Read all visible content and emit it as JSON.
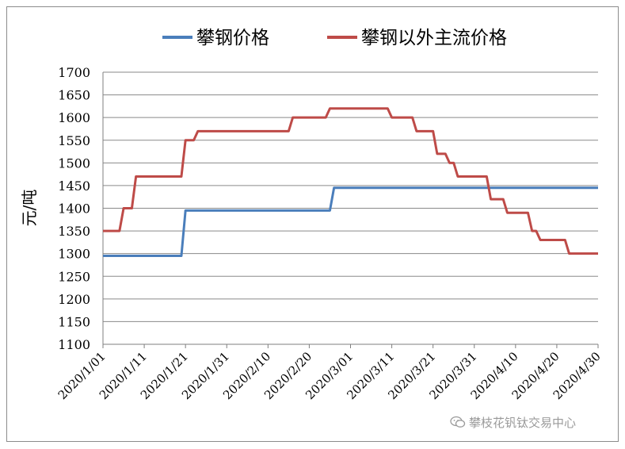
{
  "chart_data": {
    "type": "line",
    "title": "",
    "xlabel": "",
    "ylabel": "元/吨",
    "ylim": [
      1100,
      1700
    ],
    "yticks": [
      1100,
      1150,
      1200,
      1250,
      1300,
      1350,
      1400,
      1450,
      1500,
      1550,
      1600,
      1650,
      1700
    ],
    "x_range": [
      "2020/1/01",
      "2020/4/30"
    ],
    "x_tick_labels": [
      "2020/1/01",
      "2020/1/11",
      "2020/1/21",
      "2020/1/31",
      "2020/2/10",
      "2020/2/20",
      "2020/3/01",
      "2020/3/11",
      "2020/3/21",
      "2020/3/31",
      "2020/4/10",
      "2020/4/20",
      "2020/4/30"
    ],
    "grid": true,
    "legend_position": "top",
    "series": [
      {
        "name": "攀钢价格",
        "color": "#4a7ebb",
        "points": [
          [
            "2020/1/01",
            1295
          ],
          [
            "2020/1/20",
            1295
          ],
          [
            "2020/1/21",
            1395
          ],
          [
            "2020/2/25",
            1395
          ],
          [
            "2020/2/26",
            1445
          ],
          [
            "2020/4/30",
            1445
          ]
        ]
      },
      {
        "name": "攀钢以外主流价格",
        "color": "#be4b48",
        "points": [
          [
            "2020/1/01",
            1350
          ],
          [
            "2020/1/05",
            1350
          ],
          [
            "2020/1/06",
            1400
          ],
          [
            "2020/1/08",
            1400
          ],
          [
            "2020/1/09",
            1470
          ],
          [
            "2020/1/20",
            1470
          ],
          [
            "2020/1/21",
            1550
          ],
          [
            "2020/1/23",
            1550
          ],
          [
            "2020/1/24",
            1570
          ],
          [
            "2020/2/15",
            1570
          ],
          [
            "2020/2/16",
            1600
          ],
          [
            "2020/2/24",
            1600
          ],
          [
            "2020/2/25",
            1620
          ],
          [
            "2020/3/10",
            1620
          ],
          [
            "2020/3/11",
            1600
          ],
          [
            "2020/3/16",
            1600
          ],
          [
            "2020/3/17",
            1570
          ],
          [
            "2020/3/21",
            1570
          ],
          [
            "2020/3/22",
            1520
          ],
          [
            "2020/3/24",
            1520
          ],
          [
            "2020/3/25",
            1500
          ],
          [
            "2020/3/26",
            1500
          ],
          [
            "2020/3/27",
            1470
          ],
          [
            "2020/4/03",
            1470
          ],
          [
            "2020/4/04",
            1420
          ],
          [
            "2020/4/07",
            1420
          ],
          [
            "2020/4/08",
            1390
          ],
          [
            "2020/4/13",
            1390
          ],
          [
            "2020/4/14",
            1350
          ],
          [
            "2020/4/15",
            1350
          ],
          [
            "2020/4/16",
            1330
          ],
          [
            "2020/4/22",
            1330
          ],
          [
            "2020/4/23",
            1300
          ],
          [
            "2020/4/30",
            1300
          ]
        ]
      }
    ]
  },
  "watermark": {
    "text": "攀枝花钒钛交易中心",
    "icon": "wechat-icon"
  }
}
